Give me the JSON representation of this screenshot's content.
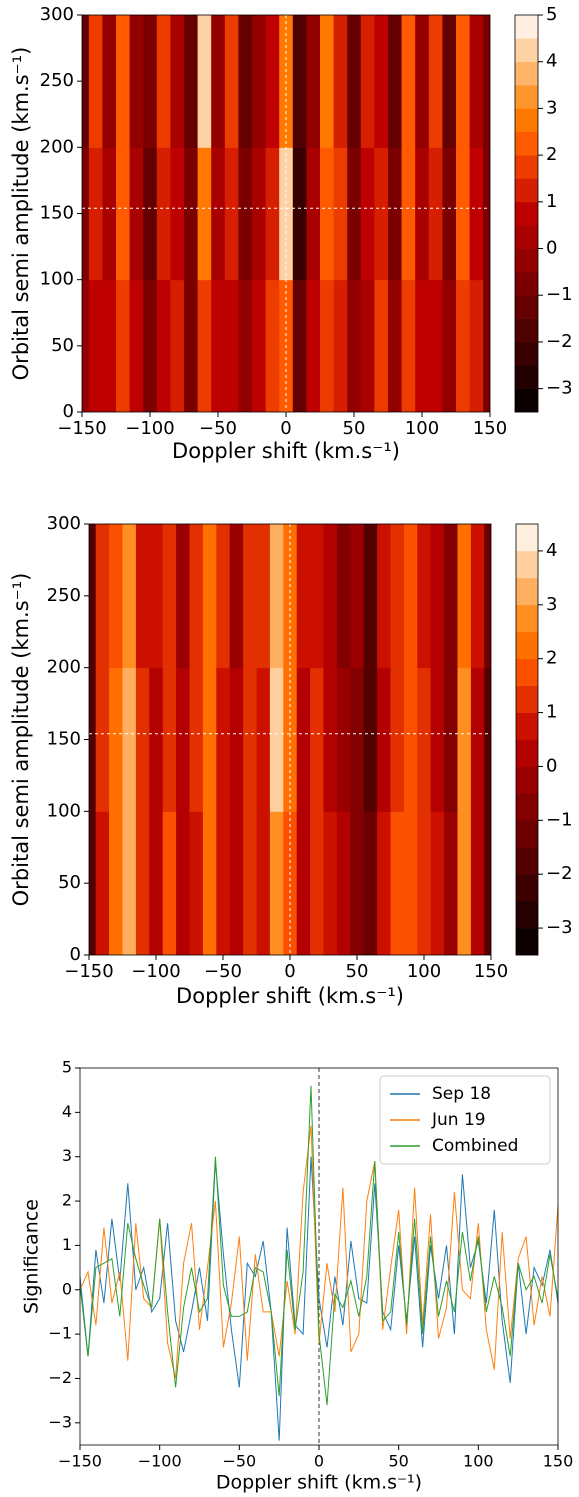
{
  "chart_data": [
    {
      "type": "heatmap",
      "xlabel": "Doppler shift (km.s⁻¹)",
      "ylabel": "Orbital semi amplitude (km.s⁻¹)",
      "colormap": "gist_heat",
      "x": [
        -150,
        -140,
        -130,
        -120,
        -110,
        -100,
        -90,
        -80,
        -70,
        -60,
        -50,
        -40,
        -30,
        -20,
        -10,
        0,
        10,
        20,
        30,
        40,
        50,
        60,
        70,
        80,
        90,
        100,
        110,
        120,
        130,
        140,
        150
      ],
      "y": [
        50,
        150,
        250
      ],
      "z": [
        [
          -0.5,
          0.5,
          0.5,
          1.5,
          0.5,
          -1,
          0.5,
          1,
          -1,
          1.5,
          0.5,
          0.5,
          -0.5,
          0.5,
          1.5,
          2,
          -1.5,
          0.5,
          1.5,
          1,
          -0.5,
          0,
          1.5,
          -0.5,
          1.5,
          0.5,
          0.5,
          -0.5,
          1.5,
          1,
          -1
        ],
        [
          -1,
          1,
          0,
          2,
          0,
          -1.5,
          1,
          0.5,
          -1,
          2.5,
          0,
          1,
          -1,
          0,
          1,
          4,
          -2.5,
          0,
          2,
          1.5,
          -1,
          0.5,
          1,
          -1,
          2,
          0,
          1,
          -1,
          2,
          0.5,
          -1
        ],
        [
          -1.5,
          1.5,
          -0.5,
          2,
          -0.5,
          -1,
          1.5,
          0,
          -1.5,
          4,
          -0.5,
          1.5,
          -1.5,
          -0.5,
          0.5,
          2.5,
          -2,
          -0.5,
          2.5,
          1,
          -1.5,
          1,
          0.5,
          -1.5,
          2,
          -0.5,
          1.5,
          -1.5,
          2,
          0,
          -1
        ]
      ],
      "xlim": [
        -150,
        150
      ],
      "xticks": [
        {
          "value": -150,
          "label": "−150"
        },
        {
          "value": -100,
          "label": "−100"
        },
        {
          "value": -50,
          "label": "−50"
        },
        0,
        50,
        100,
        150
      ],
      "ylim": [
        0,
        300
      ],
      "yticks": [
        0,
        50,
        100,
        150,
        200,
        250,
        300
      ],
      "vline": 0,
      "hline": 154,
      "clim": [
        -3.5,
        5
      ],
      "cticks": [
        {
          "value": -3,
          "label": "−3"
        },
        {
          "value": -2,
          "label": "−2"
        },
        {
          "value": -1,
          "label": "−1"
        },
        0,
        1,
        2,
        3,
        4,
        5
      ]
    },
    {
      "type": "heatmap",
      "xlabel": "Doppler shift (km.s⁻¹)",
      "ylabel": "Orbital semi amplitude (km.s⁻¹)",
      "colormap": "gist_heat",
      "x": [
        -150,
        -140,
        -130,
        -120,
        -110,
        -100,
        -90,
        -80,
        -70,
        -60,
        -50,
        -40,
        -30,
        -20,
        -10,
        0,
        10,
        20,
        30,
        40,
        50,
        60,
        70,
        80,
        90,
        100,
        110,
        120,
        130,
        140,
        150
      ],
      "y": [
        50,
        150,
        250
      ],
      "z": [
        [
          -2,
          0.5,
          2,
          3,
          1,
          0,
          1.5,
          0,
          0.5,
          2,
          0.5,
          0,
          1,
          0.5,
          2.5,
          1.5,
          0,
          1,
          0.5,
          0,
          -1,
          -1.5,
          0.5,
          1.5,
          1.5,
          1,
          0.5,
          -0.5,
          2.5,
          0,
          -2
        ],
        [
          -2,
          1,
          2,
          3,
          1,
          0,
          1,
          0,
          1,
          2,
          0.5,
          0,
          1,
          0.5,
          3.5,
          2,
          0,
          1,
          0,
          -0.5,
          -1,
          -2,
          0,
          1,
          1.5,
          1,
          0,
          -1,
          2.5,
          0,
          -2
        ],
        [
          -2,
          1,
          1.5,
          2.5,
          0.5,
          0.5,
          1,
          -0.5,
          1,
          2,
          1,
          -0.5,
          1,
          1,
          3,
          2,
          0.5,
          0.5,
          0,
          -1,
          -0.5,
          -2,
          0.5,
          1,
          1.5,
          0.5,
          0,
          -1,
          2,
          0.5,
          -1.5
        ]
      ],
      "xlim": [
        -150,
        150
      ],
      "xticks": [
        {
          "value": -150,
          "label": "−150"
        },
        {
          "value": -100,
          "label": "−100"
        },
        {
          "value": -50,
          "label": "−50"
        },
        0,
        50,
        100,
        150
      ],
      "ylim": [
        0,
        300
      ],
      "yticks": [
        0,
        50,
        100,
        150,
        200,
        250,
        300
      ],
      "vline": 0,
      "hline": 154,
      "clim": [
        -3.5,
        4.5
      ],
      "cticks": [
        {
          "value": -3,
          "label": "−3"
        },
        {
          "value": -2,
          "label": "−2"
        },
        {
          "value": -1,
          "label": "−1"
        },
        0,
        1,
        2,
        3,
        4
      ]
    },
    {
      "type": "line",
      "xlabel": "Doppler shift (km.s⁻¹)",
      "ylabel": "Significance",
      "legend": "upper right",
      "vline": 0,
      "x": [
        -150,
        -145,
        -140,
        -135,
        -130,
        -125,
        -120,
        -115,
        -110,
        -105,
        -100,
        -95,
        -90,
        -85,
        -80,
        -75,
        -70,
        -65,
        -60,
        -55,
        -50,
        -45,
        -40,
        -35,
        -30,
        -25,
        -20,
        -15,
        -10,
        -5,
        0,
        5,
        10,
        15,
        20,
        25,
        30,
        35,
        40,
        45,
        50,
        55,
        60,
        65,
        70,
        75,
        80,
        85,
        90,
        95,
        100,
        105,
        110,
        115,
        120,
        125,
        130,
        135,
        140,
        145,
        150
      ],
      "series": [
        {
          "name": "Sep 18",
          "color": "#1f77b4",
          "values": [
            0.3,
            -1.5,
            0.9,
            -0.3,
            1.6,
            0.2,
            2.4,
            0,
            0.5,
            -0.5,
            -0.2,
            1.5,
            -0.7,
            -1.4,
            -0.5,
            0.5,
            -0.7,
            2.9,
            0.8,
            -0.9,
            -2.2,
            0.6,
            0.3,
            1.1,
            -0.5,
            -3.4,
            1.4,
            -0.8,
            -1,
            3,
            -0.2,
            -1.3,
            0.3,
            -0.8,
            1.1,
            -0.2,
            -0.3,
            2.4,
            -0.5,
            -0.9,
            1,
            -0.7,
            1.2,
            -1.3,
            1,
            -0.2,
            1,
            -1,
            2.6,
            0.5,
            1.1,
            -0.3,
            1.8,
            -0.7,
            -2.1,
            0.6,
            -1,
            0.5,
            0.1,
            0.9,
            -0.3
          ]
        },
        {
          "name": "Jun 19",
          "color": "#ff7f0e",
          "values": [
            0,
            0.4,
            -0.8,
            1.4,
            -0.3,
            0.4,
            -1.6,
            1.5,
            -0.2,
            -0.4,
            1.6,
            -1.2,
            -2,
            0.6,
            1.5,
            -0.9,
            0.5,
            2,
            -1.3,
            -0.3,
            1.2,
            -1.6,
            0.8,
            -0.5,
            -0.5,
            -1.5,
            0.2,
            -1,
            2.2,
            3.7,
            -1.2,
            0.6,
            -0.5,
            2.3,
            -1.4,
            -1,
            2,
            2.9,
            -0.9,
            0.5,
            1.8,
            -1,
            2.3,
            -0.8,
            1.7,
            -1.1,
            -0.4,
            2.2,
            0,
            -0.2,
            1.5,
            -0.9,
            -1.8,
            1.3,
            -1.1,
            0.7,
            1.2,
            -0.8,
            0.3,
            -0.6,
            1.9
          ]
        },
        {
          "name": "Combined",
          "color": "#2ca02c",
          "values": [
            0.1,
            -1.5,
            0.5,
            0.6,
            0.7,
            -0.6,
            1.5,
            0.7,
            0.1,
            -0.4,
            1.6,
            -0.5,
            -2.2,
            -0.4,
            0.5,
            -0.5,
            -0.2,
            3,
            0.1,
            -0.6,
            -0.6,
            -0.5,
            0.5,
            0.4,
            -0.5,
            -2.4,
            0.9,
            -0.9,
            0.4,
            4.6,
            -1,
            -2.6,
            -0.1,
            -0.4,
            0.2,
            -0.6,
            0.3,
            2.9,
            -0.7,
            -0.5,
            1.3,
            -0.8,
            1.6,
            -1,
            1.2,
            -0.6,
            0.2,
            -0.5,
            1.3,
            0.2,
            1.2,
            -0.5,
            0.3,
            -0.4,
            -1.5,
            0.6,
            0,
            0.3,
            -0.3,
            0.8,
            -0.2
          ]
        }
      ],
      "xlim": [
        -150,
        150
      ],
      "xticks": [
        {
          "value": -150,
          "label": "−150"
        },
        {
          "value": -100,
          "label": "−100"
        },
        {
          "value": -50,
          "label": "−50"
        },
        0,
        50,
        100,
        150
      ],
      "ylim": [
        -3.5,
        5
      ],
      "yticks": [
        {
          "value": -3,
          "label": "−3"
        },
        {
          "value": -2,
          "label": "−2"
        },
        {
          "value": -1,
          "label": "−1"
        },
        0,
        1,
        2,
        3,
        4,
        5
      ]
    }
  ]
}
